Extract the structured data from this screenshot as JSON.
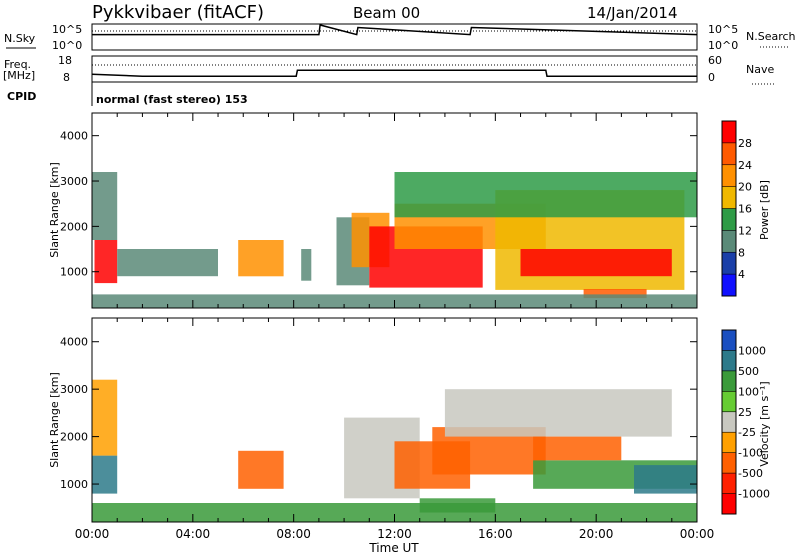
{
  "header": {
    "station": "Pykkvibaer (fitACF)",
    "beam": "Beam 00",
    "date": "14/Jan/2014"
  },
  "panels": {
    "nsky_label": "N.Sky",
    "nsearch_label": "N.Search",
    "nsky_ticks": [
      "10^5",
      "10^0"
    ],
    "nsearch_ticks": [
      "10^5",
      "10^0"
    ],
    "freq_label": "Freq.",
    "freq_unit": "[MHz]",
    "freq_ticks": [
      "18",
      "8"
    ],
    "nave_label": "Nave",
    "nave_ticks": [
      "60",
      "0"
    ],
    "cpid_label": "CPID",
    "cpid_text": "normal (fast stereo) 153"
  },
  "axes": {
    "ylabel": "Slant Range [km]",
    "xlabel": "Time UT",
    "x_ticks": [
      "00:00",
      "04:00",
      "08:00",
      "12:00",
      "16:00",
      "20:00",
      "00:00"
    ],
    "y_ticks": [
      "4000",
      "3000",
      "2000",
      "1000"
    ]
  },
  "colorbars": {
    "power": {
      "label": "Power [dB]",
      "ticks": [
        "28",
        "24",
        "20",
        "16",
        "12",
        "8",
        "4"
      ],
      "colors": [
        "#ff0000",
        "#ff5a00",
        "#ff9000",
        "#f0b800",
        "#2e9b46",
        "#5a8a78",
        "#1a3fa8",
        "#1010ff"
      ]
    },
    "velocity": {
      "label": "Velocity [m s⁻¹]",
      "ticks": [
        "1000",
        "500",
        "100",
        "25",
        "-25",
        "-100",
        "-500",
        "-1000"
      ],
      "colors": [
        "#1a4fc0",
        "#2d7a8a",
        "#3a9a3a",
        "#66cc33",
        "#c8c8c0",
        "#ffa000",
        "#ff6000",
        "#ff2000",
        "#ff0000"
      ]
    }
  },
  "chart_data": [
    {
      "type": "line",
      "title": "N.Sky / N.Search",
      "x": [
        0,
        9,
        9.05,
        10.5,
        10.55,
        15,
        15.05,
        24
      ],
      "series": [
        {
          "name": "N.Sky",
          "values": [
            1000,
            1000,
            100000,
            1000,
            30000,
            1000,
            30000,
            1000
          ]
        }
      ]
    },
    {
      "type": "line",
      "title": "Freq. / Nave",
      "x": [
        0,
        2,
        3,
        8.1,
        8.15,
        18,
        18.05,
        24
      ],
      "series": [
        {
          "name": "Freq. [MHz]",
          "values": [
            10.8,
            10.0,
            10.0,
            10.0,
            12.5,
            12.5,
            10.0,
            10.0
          ]
        },
        {
          "name": "Nave",
          "values": [
            40,
            40,
            40,
            40,
            40,
            40,
            40,
            40
          ]
        }
      ]
    },
    {
      "type": "heatmap",
      "title": "Power [dB]",
      "xlabel": "Time UT",
      "ylabel": "Slant Range [km]",
      "xlim": [
        0,
        24
      ],
      "ylim": [
        200,
        4500
      ],
      "clim": [
        0,
        32
      ],
      "regions": [
        {
          "t0": 0.1,
          "t1": 1.0,
          "r0": 750,
          "r1": 1700,
          "value": 28
        },
        {
          "t0": 0.0,
          "t1": 1.0,
          "r0": 1700,
          "r1": 3200,
          "value": 8
        },
        {
          "t0": 1.0,
          "t1": 5.0,
          "r0": 900,
          "r1": 1500,
          "value": 8
        },
        {
          "t0": 5.8,
          "t1": 7.6,
          "r0": 900,
          "r1": 1700,
          "value": 22
        },
        {
          "t0": 8.3,
          "t1": 8.7,
          "r0": 800,
          "r1": 1500,
          "value": 8
        },
        {
          "t0": 9.7,
          "t1": 11.0,
          "r0": 700,
          "r1": 2200,
          "value": 8
        },
        {
          "t0": 10.3,
          "t1": 11.8,
          "r0": 1100,
          "r1": 2300,
          "value": 20
        },
        {
          "t0": 11.0,
          "t1": 15.5,
          "r0": 650,
          "r1": 2000,
          "value": 28
        },
        {
          "t0": 12.0,
          "t1": 18.0,
          "r0": 1500,
          "r1": 2500,
          "value": 20
        },
        {
          "t0": 16.0,
          "t1": 23.5,
          "r0": 600,
          "r1": 2800,
          "value": 16
        },
        {
          "t0": 17.0,
          "t1": 23.0,
          "r0": 900,
          "r1": 1500,
          "value": 28
        },
        {
          "t0": 19.5,
          "t1": 22.0,
          "r0": 420,
          "r1": 620,
          "value": 24
        },
        {
          "t0": 12.0,
          "t1": 24.0,
          "r0": 2200,
          "r1": 3200,
          "value": 12
        },
        {
          "t0": 0.0,
          "t1": 24.0,
          "r0": 200,
          "r1": 500,
          "value": 8
        }
      ]
    },
    {
      "type": "heatmap",
      "title": "Velocity [m s-1]",
      "xlabel": "Time UT",
      "ylabel": "Slant Range [km]",
      "xlim": [
        0,
        24
      ],
      "ylim": [
        200,
        4500
      ],
      "clim": [
        -1000,
        1000
      ],
      "regions": [
        {
          "t0": 0.0,
          "t1": 1.0,
          "r0": 800,
          "r1": 1600,
          "value": 500
        },
        {
          "t0": 0.0,
          "t1": 1.0,
          "r0": 1600,
          "r1": 3200,
          "value": -100
        },
        {
          "t0": 5.8,
          "t1": 7.6,
          "r0": 900,
          "r1": 1700,
          "value": -300
        },
        {
          "t0": 10.0,
          "t1": 13.0,
          "r0": 700,
          "r1": 2400,
          "value": 0
        },
        {
          "t0": 12.0,
          "t1": 15.0,
          "r0": 900,
          "r1": 1900,
          "value": -300
        },
        {
          "t0": 13.5,
          "t1": 18.0,
          "r0": 1200,
          "r1": 2200,
          "value": -300
        },
        {
          "t0": 14.0,
          "t1": 23.0,
          "r0": 2000,
          "r1": 3000,
          "value": 0
        },
        {
          "t0": 17.5,
          "t1": 24.0,
          "r0": 900,
          "r1": 1500,
          "value": 100
        },
        {
          "t0": 17.5,
          "t1": 21.0,
          "r0": 1500,
          "r1": 2000,
          "value": -300
        },
        {
          "t0": 21.5,
          "t1": 24.0,
          "r0": 800,
          "r1": 1400,
          "value": 500
        },
        {
          "t0": 13.0,
          "t1": 16.0,
          "r0": 400,
          "r1": 700,
          "value": 100
        },
        {
          "t0": 0.0,
          "t1": 24.0,
          "r0": 200,
          "r1": 600,
          "value": 100
        }
      ]
    }
  ]
}
